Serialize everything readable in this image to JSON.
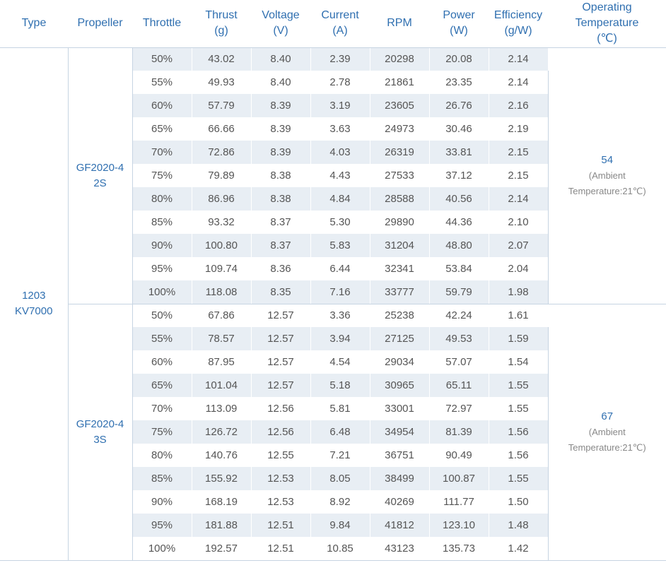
{
  "headers": {
    "type": "Type",
    "propeller": "Propeller",
    "throttle": "Throttle",
    "thrust": [
      "Thrust",
      "(g)"
    ],
    "voltage": [
      "Voltage",
      "(V)"
    ],
    "current": [
      "Current",
      "(A)"
    ],
    "rpm": "RPM",
    "power": [
      "Power",
      "(W)"
    ],
    "efficiency": [
      "Efficiency",
      "(g/W)"
    ],
    "operating_temp": [
      "Operating",
      "Temperature",
      "(℃)"
    ]
  },
  "motor_type": [
    "1203",
    "KV7000"
  ],
  "groups": [
    {
      "propeller": [
        "GF2020-4",
        "2S"
      ],
      "temp_value": "54",
      "temp_note": [
        "(Ambient",
        "Temperature:21℃)"
      ],
      "rows": [
        [
          "50%",
          "43.02",
          "8.40",
          "2.39",
          "20298",
          "20.08",
          "2.14"
        ],
        [
          "55%",
          "49.93",
          "8.40",
          "2.78",
          "21861",
          "23.35",
          "2.14"
        ],
        [
          "60%",
          "57.79",
          "8.39",
          "3.19",
          "23605",
          "26.76",
          "2.16"
        ],
        [
          "65%",
          "66.66",
          "8.39",
          "3.63",
          "24973",
          "30.46",
          "2.19"
        ],
        [
          "70%",
          "72.86",
          "8.39",
          "4.03",
          "26319",
          "33.81",
          "2.15"
        ],
        [
          "75%",
          "79.89",
          "8.38",
          "4.43",
          "27533",
          "37.12",
          "2.15"
        ],
        [
          "80%",
          "86.96",
          "8.38",
          "4.84",
          "28588",
          "40.56",
          "2.14"
        ],
        [
          "85%",
          "93.32",
          "8.37",
          "5.30",
          "29890",
          "44.36",
          "2.10"
        ],
        [
          "90%",
          "100.80",
          "8.37",
          "5.83",
          "31204",
          "48.80",
          "2.07"
        ],
        [
          "95%",
          "109.74",
          "8.36",
          "6.44",
          "32341",
          "53.84",
          "2.04"
        ],
        [
          "100%",
          "118.08",
          "8.35",
          "7.16",
          "33777",
          "59.79",
          "1.98"
        ]
      ]
    },
    {
      "propeller": [
        "GF2020-4",
        "3S"
      ],
      "temp_value": "67",
      "temp_note": [
        "(Ambient",
        "Temperature:21℃)"
      ],
      "rows": [
        [
          "50%",
          "67.86",
          "12.57",
          "3.36",
          "25238",
          "42.24",
          "1.61"
        ],
        [
          "55%",
          "78.57",
          "12.57",
          "3.94",
          "27125",
          "49.53",
          "1.59"
        ],
        [
          "60%",
          "87.95",
          "12.57",
          "4.54",
          "29034",
          "57.07",
          "1.54"
        ],
        [
          "65%",
          "101.04",
          "12.57",
          "5.18",
          "30965",
          "65.11",
          "1.55"
        ],
        [
          "70%",
          "113.09",
          "12.56",
          "5.81",
          "33001",
          "72.97",
          "1.55"
        ],
        [
          "75%",
          "126.72",
          "12.56",
          "6.48",
          "34954",
          "81.39",
          "1.56"
        ],
        [
          "80%",
          "140.76",
          "12.55",
          "7.21",
          "36751",
          "90.49",
          "1.56"
        ],
        [
          "85%",
          "155.92",
          "12.53",
          "8.05",
          "38499",
          "100.87",
          "1.55"
        ],
        [
          "90%",
          "168.19",
          "12.53",
          "8.92",
          "40269",
          "111.77",
          "1.50"
        ],
        [
          "95%",
          "181.88",
          "12.51",
          "9.84",
          "41812",
          "123.10",
          "1.48"
        ],
        [
          "100%",
          "192.57",
          "12.51",
          "10.85",
          "43123",
          "135.73",
          "1.42"
        ]
      ]
    }
  ],
  "colors": {
    "header_text": "#2f6fb0",
    "stripe": "#e8eef4",
    "border": "#c6d4e2",
    "body_text": "#555555"
  }
}
